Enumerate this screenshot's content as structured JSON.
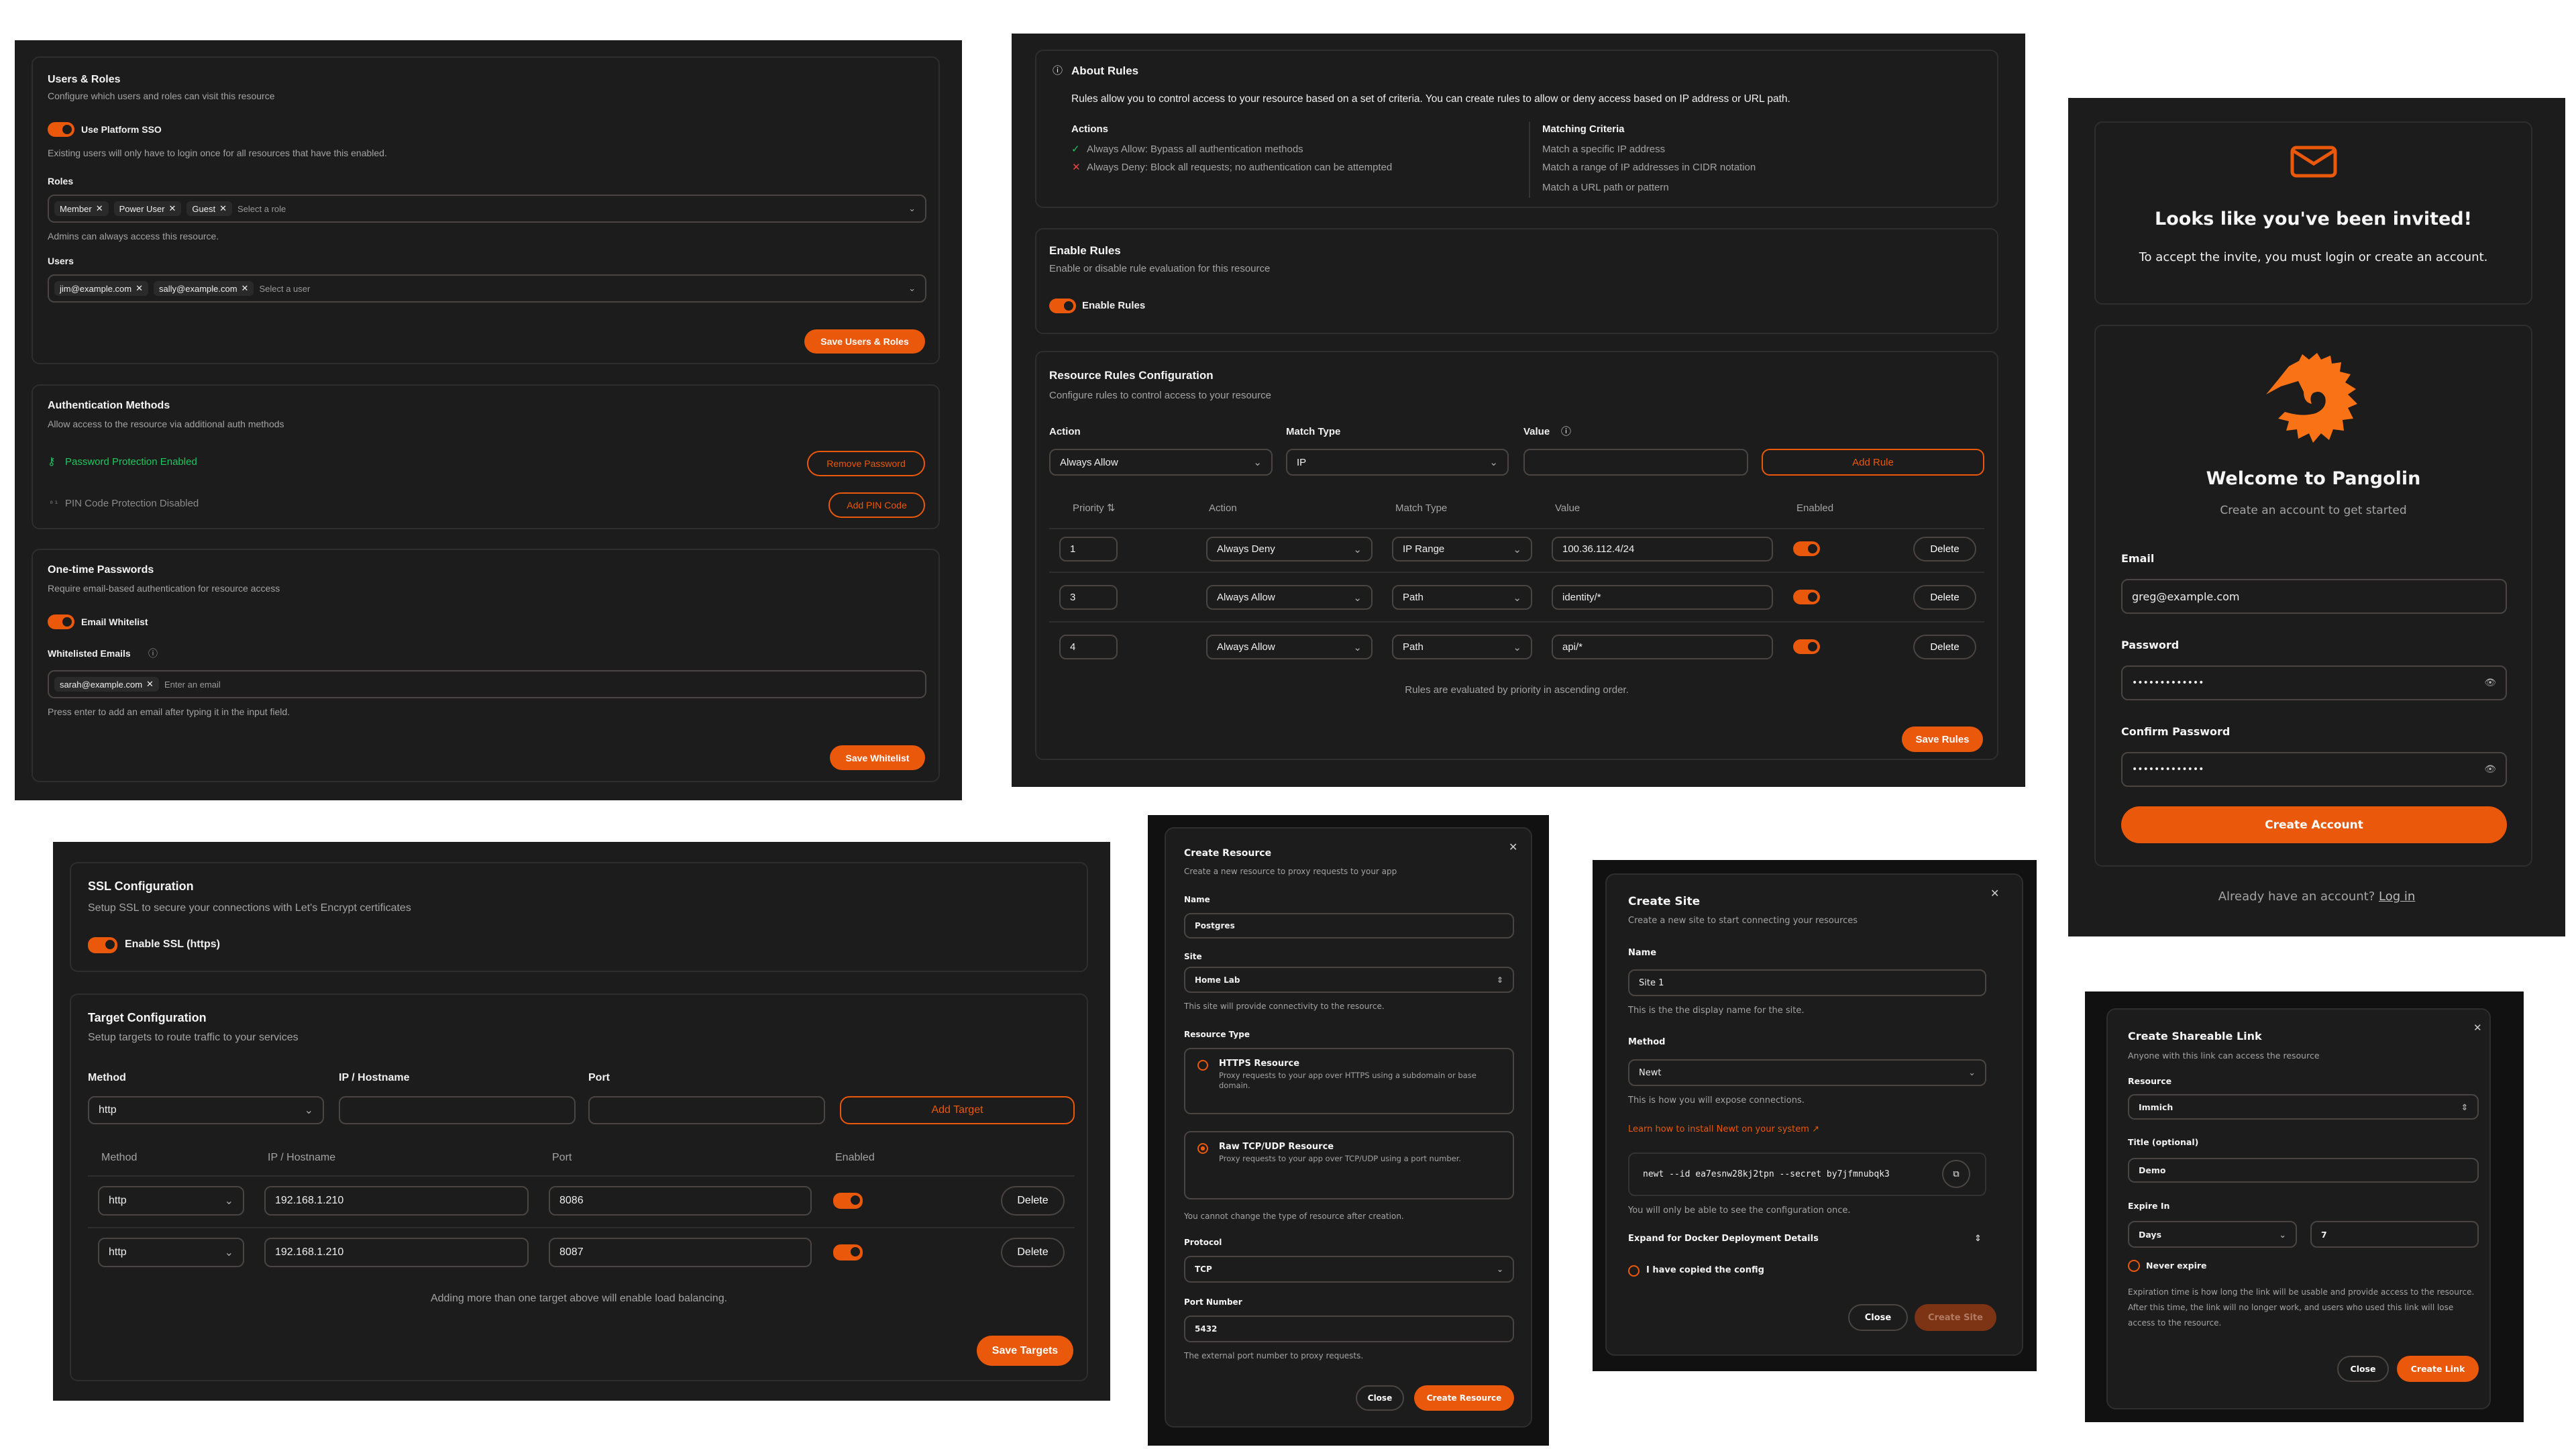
{
  "colors": {
    "accent": "#ea580c",
    "success": "#22c55e",
    "danger": "#ef4444",
    "background": "#1c1c1c"
  },
  "users_roles": {
    "title": "Users & Roles",
    "subtitle": "Configure which users and roles can visit this resource",
    "sso_label": "Use Platform SSO",
    "sso_enabled": true,
    "sso_help": "Existing users will only have to login once for all resources that have this enabled.",
    "roles_label": "Roles",
    "roles": [
      "Member",
      "Power User",
      "Guest"
    ],
    "roles_placeholder": "Select a role",
    "roles_help": "Admins can always access this resource.",
    "users_label": "Users",
    "users": [
      "jim@example.com",
      "sally@example.com"
    ],
    "users_placeholder": "Select a user",
    "save": "Save Users & Roles"
  },
  "auth_methods": {
    "title": "Authentication Methods",
    "subtitle": "Allow access to the resource via additional auth methods",
    "password_status": "Password Protection Enabled",
    "remove_password": "Remove Password",
    "pin_status": "PIN Code Protection Disabled",
    "add_pin": "Add PIN Code"
  },
  "otp": {
    "title": "One-time Passwords",
    "subtitle": "Require email-based authentication for resource access",
    "toggle_label": "Email Whitelist",
    "enabled": true,
    "emails_label": "Whitelisted Emails",
    "emails": [
      "sarah@example.com"
    ],
    "email_placeholder": "Enter an email",
    "help": "Press enter to add an email after typing it in the input field.",
    "save": "Save Whitelist"
  },
  "about_rules": {
    "title": "About Rules",
    "description": "Rules allow you to control access to your resource based on a set of criteria. You can create rules to allow or deny access based on IP address or URL path.",
    "actions_title": "Actions",
    "actions": [
      "Always Allow: Bypass all authentication methods",
      "Always Deny: Block all requests; no authentication can be attempted"
    ],
    "criteria_title": "Matching Criteria",
    "criteria": [
      "Match a specific IP address",
      "Match a range of IP addresses in CIDR notation",
      "Match a URL path or pattern"
    ]
  },
  "enable_rules": {
    "title": "Enable Rules",
    "subtitle": "Enable or disable rule evaluation for this resource",
    "toggle_label": "Enable Rules",
    "enabled": true
  },
  "rules_config": {
    "title": "Resource Rules Configuration",
    "subtitle": "Configure rules to control access to your resource",
    "action_label": "Action",
    "action_value": "Always Allow",
    "match_label": "Match Type",
    "match_value": "IP",
    "value_label": "Value",
    "value_value": "",
    "add": "Add Rule",
    "columns": [
      "Priority",
      "Action",
      "Match Type",
      "Value",
      "Enabled"
    ],
    "rows": [
      {
        "priority": "1",
        "action": "Always Deny",
        "match": "IP Range",
        "value": "100.36.112.4/24",
        "enabled": true,
        "delete": "Delete"
      },
      {
        "priority": "3",
        "action": "Always Allow",
        "match": "Path",
        "value": "identity/*",
        "enabled": true,
        "delete": "Delete"
      },
      {
        "priority": "4",
        "action": "Always Allow",
        "match": "Path",
        "value": "api/*",
        "enabled": true,
        "delete": "Delete"
      }
    ],
    "footer": "Rules are evaluated by priority in ascending order.",
    "save": "Save Rules"
  },
  "invite": {
    "title": "Looks like you've been invited!",
    "subtitle": "To accept the invite, you must login or create an account.",
    "welcome": "Welcome to Pangolin",
    "welcome_sub": "Create an account to get started",
    "email_label": "Email",
    "email_value": "greg@example.com",
    "password_label": "Password",
    "password_value": "•••••••••••••",
    "confirm_label": "Confirm Password",
    "confirm_value": "•••••••••••••",
    "create": "Create Account",
    "login_prompt": "Already have an account?",
    "login_link": "Log in"
  },
  "ssl": {
    "title": "SSL Configuration",
    "subtitle": "Setup SSL to secure your connections with Let's Encrypt certificates",
    "toggle_label": "Enable SSL (https)",
    "enabled": true
  },
  "targets": {
    "title": "Target Configuration",
    "subtitle": "Setup targets to route traffic to your services",
    "method_label": "Method",
    "method_value": "http",
    "ip_label": "IP / Hostname",
    "ip_value": "",
    "port_label": "Port",
    "port_value": "",
    "add": "Add Target",
    "columns": [
      "Method",
      "IP / Hostname",
      "Port",
      "Enabled"
    ],
    "rows": [
      {
        "method": "http",
        "ip": "192.168.1.210",
        "port": "8086",
        "enabled": true,
        "delete": "Delete"
      },
      {
        "method": "http",
        "ip": "192.168.1.210",
        "port": "8087",
        "enabled": true,
        "delete": "Delete"
      }
    ],
    "footer": "Adding more than one target above will enable load balancing.",
    "save": "Save Targets"
  },
  "create_resource": {
    "title": "Create Resource",
    "subtitle": "Create a new resource to proxy requests to your app",
    "name_label": "Name",
    "name_value": "Postgres",
    "site_label": "Site",
    "site_value": "Home Lab",
    "site_help": "This site will provide connectivity to the resource.",
    "type_label": "Resource Type",
    "types": [
      {
        "title": "HTTPS Resource",
        "desc": "Proxy requests to your app over HTTPS using a subdomain or base domain.",
        "selected": false
      },
      {
        "title": "Raw TCP/UDP Resource",
        "desc": "Proxy requests to your app over TCP/UDP using a port number.",
        "selected": true
      }
    ],
    "type_help": "You cannot change the type of resource after creation.",
    "protocol_label": "Protocol",
    "protocol_value": "TCP",
    "port_label": "Port Number",
    "port_value": "5432",
    "port_help": "The external port number to proxy requests.",
    "close": "Close",
    "create": "Create Resource"
  },
  "create_site": {
    "title": "Create Site",
    "subtitle": "Create a new site to start connecting your resources",
    "name_label": "Name",
    "name_value": "Site 1",
    "name_help": "This is the the display name for the site.",
    "method_label": "Method",
    "method_value": "Newt",
    "method_help": "This is how you will expose connections.",
    "learn_link": "Learn how to install Newt on your system",
    "command": "newt --id ea7esnw28kj2tpn --secret by7jfmnubqk3",
    "command_help": "You will only be able to see the configuration once.",
    "expand": "Expand for Docker Deployment Details",
    "copied_label": "I have copied the config",
    "copied": false,
    "close": "Close",
    "create": "Create Site"
  },
  "share_link": {
    "title": "Create Shareable Link",
    "subtitle": "Anyone with this link can access the resource",
    "resource_label": "Resource",
    "resource_value": "Immich",
    "title_label": "Title (optional)",
    "title_value": "Demo",
    "expire_label": "Expire In",
    "unit_value": "Days",
    "amount_value": "7",
    "never_label": "Never expire",
    "never": false,
    "help": "Expiration time is how long the link will be usable and provide access to the resource. After this time, the link will no longer work, and users who used this link will lose access to the resource.",
    "close": "Close",
    "create": "Create Link"
  }
}
